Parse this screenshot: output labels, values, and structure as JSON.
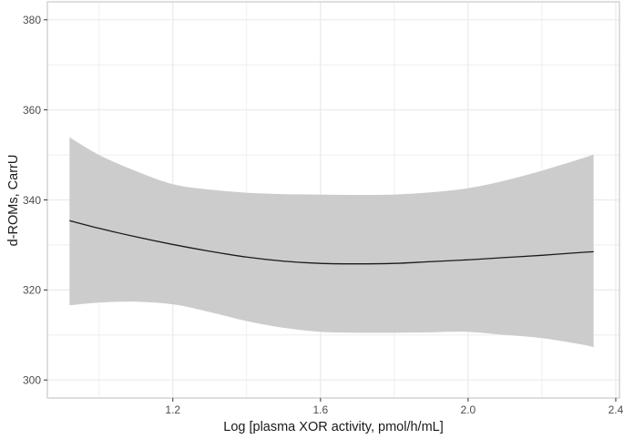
{
  "chart_data": {
    "type": "line",
    "title": "",
    "xlabel": "Log [plasma XOR activity, pmol/h/mL]",
    "ylabel": "d-ROMs, CarrU",
    "xlim": [
      0.86,
      2.41
    ],
    "ylim": [
      296,
      384
    ],
    "x_ticks": [
      1.2,
      1.6,
      2.0,
      2.4
    ],
    "x_tick_labels": [
      "1.2",
      "1.6",
      "2.0",
      "2.4"
    ],
    "x_minor": [
      1.0,
      1.4,
      1.8,
      2.2
    ],
    "y_ticks": [
      300,
      320,
      340,
      360,
      380
    ],
    "y_tick_labels": [
      "300",
      "320",
      "340",
      "360",
      "380"
    ],
    "y_minor": [
      310,
      330,
      350,
      370
    ],
    "grid": true,
    "legend": "none",
    "colors": {
      "line": "#1a1a1a",
      "band": "#cccccc",
      "grid": "#ebebeb",
      "border": "#c8c8c8",
      "tick": "#333333"
    },
    "series": [
      {
        "name": "fit",
        "x": [
          0.92,
          1.0,
          1.1,
          1.2,
          1.3,
          1.4,
          1.5,
          1.6,
          1.7,
          1.8,
          1.9,
          2.0,
          2.1,
          2.2,
          2.3,
          2.34
        ],
        "y": [
          335.4,
          333.7,
          331.8,
          330.1,
          328.6,
          327.3,
          326.4,
          325.9,
          325.8,
          325.9,
          326.3,
          326.7,
          327.2,
          327.7,
          328.3,
          328.5
        ],
        "lower": [
          316.6,
          317.2,
          317.4,
          316.8,
          315.1,
          313.1,
          311.6,
          310.7,
          310.5,
          310.5,
          310.6,
          310.7,
          310.0,
          309.3,
          308.0,
          307.3
        ],
        "upper": [
          353.9,
          350.0,
          346.4,
          343.5,
          342.3,
          341.6,
          341.3,
          341.2,
          341.1,
          341.2,
          341.7,
          342.6,
          344.3,
          346.5,
          349.0,
          350.1
        ]
      }
    ]
  }
}
